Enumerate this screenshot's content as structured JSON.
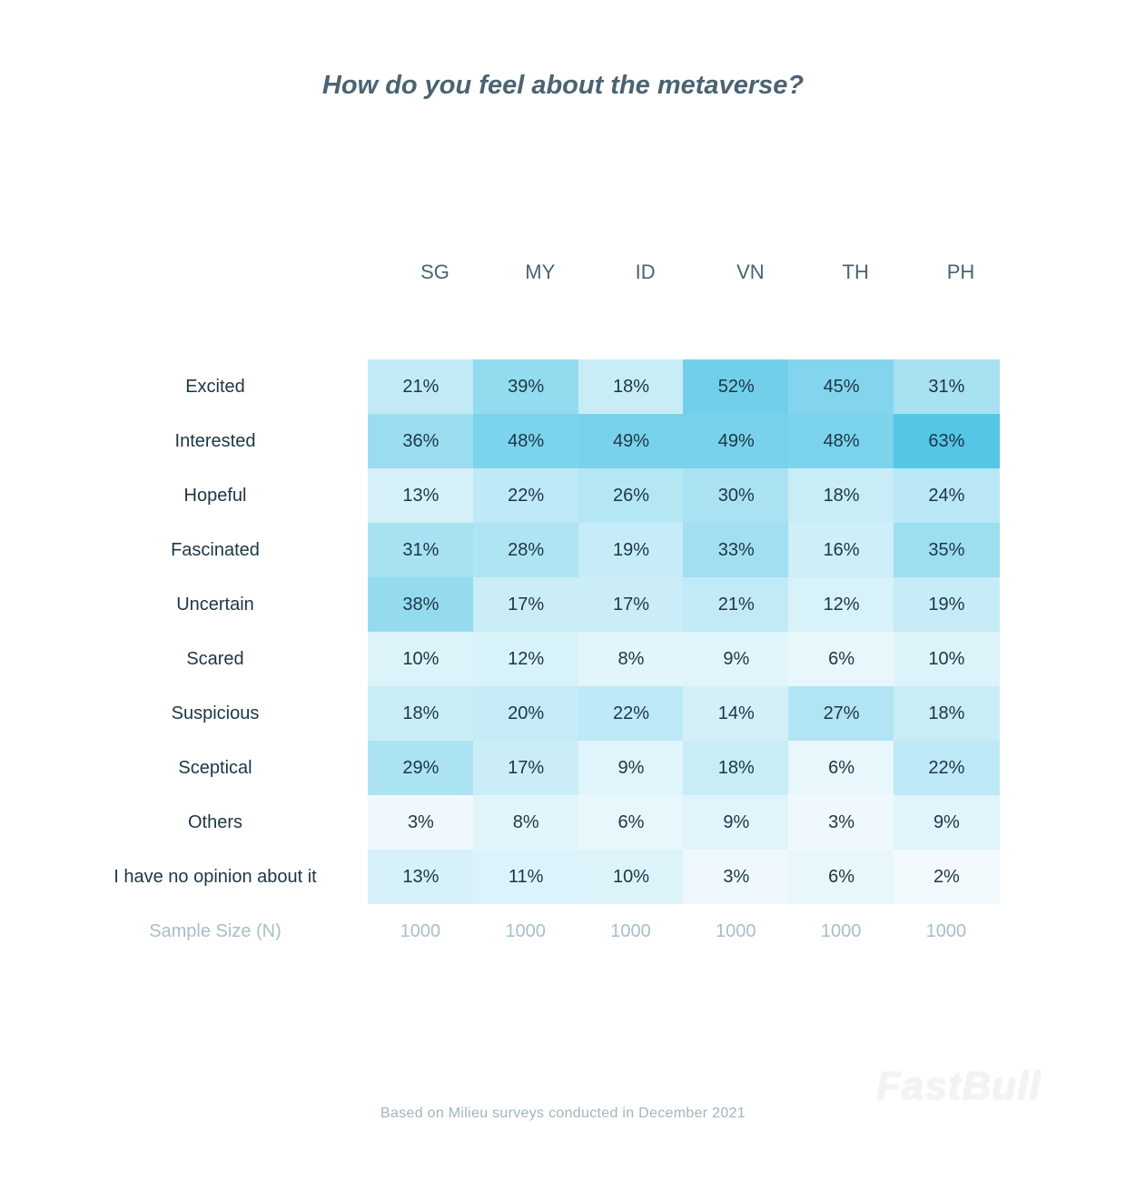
{
  "chart_data": {
    "type": "heatmap",
    "title": "How do you feel about the metaverse?",
    "columns": [
      "SG",
      "MY",
      "ID",
      "VN",
      "TH",
      "PH"
    ],
    "rows": [
      "Excited",
      "Interested",
      "Hopeful",
      "Fascinated",
      "Uncertain",
      "Scared",
      "Suspicious",
      "Sceptical",
      "Others",
      "I have no opinion about it"
    ],
    "values": [
      [
        21,
        39,
        18,
        52,
        45,
        31
      ],
      [
        36,
        48,
        49,
        49,
        48,
        63
      ],
      [
        13,
        22,
        26,
        30,
        18,
        24
      ],
      [
        31,
        28,
        19,
        33,
        16,
        35
      ],
      [
        38,
        17,
        17,
        21,
        12,
        19
      ],
      [
        10,
        12,
        8,
        9,
        6,
        10
      ],
      [
        18,
        20,
        22,
        14,
        27,
        18
      ],
      [
        29,
        17,
        9,
        18,
        6,
        22
      ],
      [
        3,
        8,
        6,
        9,
        3,
        9
      ],
      [
        13,
        11,
        10,
        3,
        6,
        2
      ]
    ],
    "value_suffix": "%",
    "sample_size_label": "Sample Size (N)",
    "sample_sizes": [
      "1000",
      "1000",
      "1000",
      "1000",
      "1000",
      "1000"
    ],
    "color_scale": {
      "low": "#f7fcfe",
      "high": "#55c6e6",
      "min": 0,
      "max": 63
    }
  },
  "footer": "Based on Milieu surveys conducted in December 2021",
  "watermark": "FastBull"
}
